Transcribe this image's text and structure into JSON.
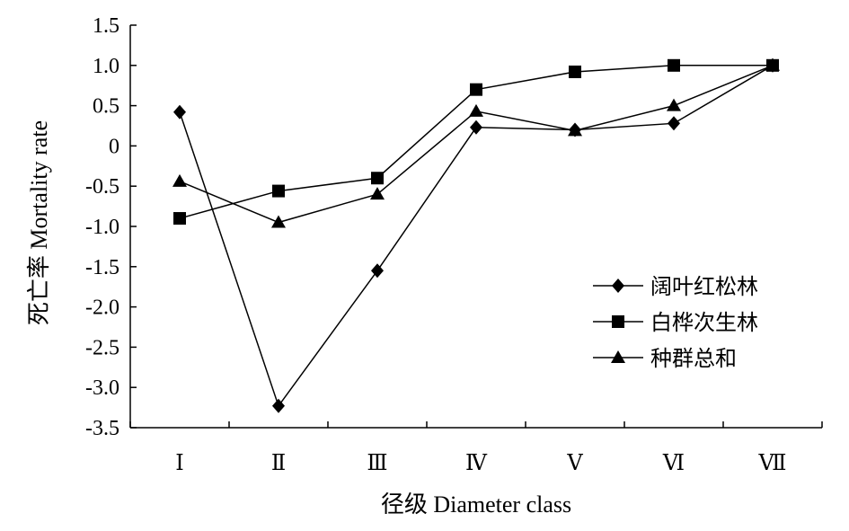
{
  "chart_data": {
    "type": "line",
    "title": "",
    "xlabel": "径级 Diameter class",
    "ylabel": "死亡率 Mortality rate",
    "categories": [
      "Ⅰ",
      "Ⅱ",
      "Ⅲ",
      "Ⅳ",
      "Ⅴ",
      "Ⅵ",
      "Ⅶ"
    ],
    "ylim": [
      -3.5,
      1.5
    ],
    "yticks": [
      1.5,
      1.0,
      0.5,
      0,
      -0.5,
      -1.0,
      -1.5,
      -2.0,
      -2.5,
      -3.0,
      -3.5
    ],
    "ytick_labels": [
      "1.5",
      "1.0",
      "0.5",
      "0",
      "-0.5",
      "-1.0",
      "-1.5",
      "-2.0",
      "-2.5",
      "-3.0",
      "-3.5"
    ],
    "grid": false,
    "legend_position": "right-middle",
    "series": [
      {
        "name": "阔叶红松林",
        "marker": "diamond",
        "values": [
          0.42,
          -3.23,
          -1.55,
          0.23,
          0.2,
          0.28,
          1.0
        ]
      },
      {
        "name": "白桦次生林",
        "marker": "square",
        "values": [
          -0.9,
          -0.56,
          -0.4,
          0.7,
          0.92,
          1.0,
          1.0
        ]
      },
      {
        "name": "种群总和",
        "marker": "triangle",
        "values": [
          -0.44,
          -0.95,
          -0.6,
          0.43,
          0.19,
          0.5,
          1.0
        ]
      }
    ],
    "colors": {
      "line": "#000000",
      "marker": "#000000",
      "background": "#ffffff"
    }
  }
}
